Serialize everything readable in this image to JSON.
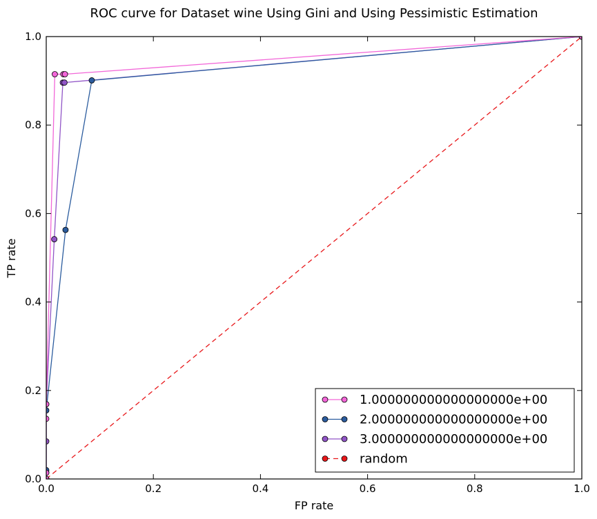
{
  "chart_data": {
    "type": "line",
    "title": "ROC curve for Dataset wine Using Gini and Using Pessimistic Estimation",
    "xlabel": "FP rate",
    "ylabel": "TP rate",
    "xlim": [
      0.0,
      1.0
    ],
    "ylim": [
      0.0,
      1.0
    ],
    "xticks": [
      "0.0",
      "0.2",
      "0.4",
      "0.6",
      "0.8",
      "1.0"
    ],
    "yticks": [
      "0.0",
      "0.2",
      "0.4",
      "0.6",
      "0.8",
      "1.0"
    ],
    "grid": false,
    "legend_position": "lower-right",
    "series": [
      {
        "name": "1.000000000000000000e+00",
        "color": "#f266d8",
        "line_style": "solid",
        "marker": "circle",
        "points": [
          [
            0.0,
            0.0
          ],
          [
            0.0,
            0.014
          ],
          [
            0.0,
            0.136
          ],
          [
            0.0,
            0.169
          ],
          [
            0.016,
            0.915
          ],
          [
            0.032,
            0.915
          ],
          [
            0.035,
            0.915
          ],
          [
            1.0,
            1.0
          ]
        ]
      },
      {
        "name": "2.000000000000000000e+00",
        "color": "#2b5c9e",
        "line_style": "solid",
        "marker": "circle",
        "points": [
          [
            0.0,
            0.0
          ],
          [
            0.0,
            0.02
          ],
          [
            0.0,
            0.155
          ],
          [
            0.036,
            0.563
          ],
          [
            0.085,
            0.901
          ],
          [
            1.0,
            1.0
          ]
        ]
      },
      {
        "name": "3.000000000000000000e+00",
        "color": "#9155c7",
        "line_style": "solid",
        "marker": "circle",
        "points": [
          [
            0.0,
            0.0
          ],
          [
            0.0,
            0.014
          ],
          [
            0.0,
            0.085
          ],
          [
            0.0,
            0.169
          ],
          [
            0.015,
            0.542
          ],
          [
            0.031,
            0.896
          ],
          [
            0.034,
            0.896
          ],
          [
            1.0,
            1.0
          ]
        ]
      },
      {
        "name": "random",
        "color": "#e8171a",
        "line_style": "dashed",
        "marker": "circle",
        "points": [
          [
            0.0,
            0.0
          ],
          [
            1.0,
            1.0
          ]
        ]
      }
    ]
  }
}
